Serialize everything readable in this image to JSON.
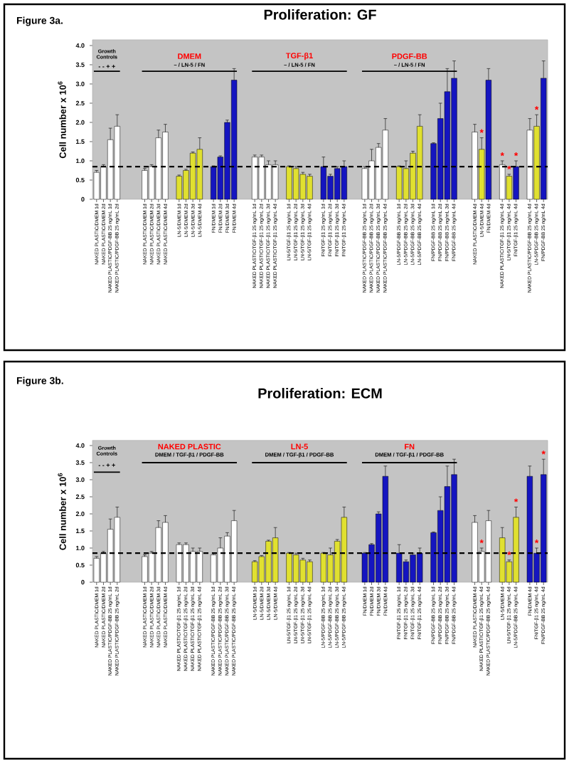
{
  "chart_data": [
    {
      "type": "bar",
      "title": "Proliferation: GF",
      "ylabel": "Cell number x 10$^{6}$",
      "annotations": [
        "Figure 3a.",
        "Growth Controls",
        "- - + +",
        "DMEM",
        "– / LN-5 / FN",
        "TGF-β1",
        "– / LN-5 / FN",
        "PDGF-BB",
        "– / LN-5 / FN"
      ],
      "categories": [
        "NAKED PLASTIC/DMEM 1d",
        "NAKED PLASTIC/DMEM 2d",
        "NAKED PLASTIC/PDGF-BB 25 ng/mL 1d",
        "NAKED PLASTIC/PDGF-BB 25 ng/mL 2d",
        null,
        null,
        null,
        "NAKED PLASTIC/DMEM 1d",
        "NAKED PLASTIC/DMEM 2d",
        "NAKED PLASTIC/DMEM 3d",
        "NAKED PLASTIC/DMEM 4d",
        null,
        "LN-5/DMEM 1d",
        "LN-5/DMEM 2d",
        "LN-5/DMEM 3d",
        "LN-5/DMEM 4d",
        null,
        "FN/DMEM 1d",
        "FN/DMEM 2d",
        "FN/DMEM 3d",
        "FN/DMEM 4d",
        null,
        null,
        "NAKED PLASTIC/TGF-β1 25 ng/mL 1d",
        "NAKED PLASTIC/TGF-β1 25 ng/mL 2d",
        "NAKED PLASTIC/TGF-β1 25 ng/mL 3d",
        "NAKED PLASTIC/TGF-β1 25 ng/mL 4d",
        null,
        "LN-5/TGF-β1 25 ng/mL 1d",
        "LN-5/TGF-β1 25 ng/mL 2d",
        "LN-5/TGF-β1 25 ng/mL 3d",
        "LN-5/TGF-β1 25 ng/mL 4d",
        null,
        "FN/TGF-β1 25 ng/mL 1d",
        "FN/TGF-β1 25 ng/mL 2d",
        "FN/TGF-β1 25 ng/mL 3d",
        "FN/TGF-β1 25 ng/mL 4d",
        null,
        null,
        "NAKED PLASTIC/PDGF-BB 25 ng/mL 1d",
        "NAKED PLASTIC/PDGF-BB 25 ng/mL 2d",
        "NAKED PLASTIC/PDGF-BB 25 ng/mL 3d",
        "NAKED PLASTIC/PDGF-BB 25 ng/mL 4d",
        null,
        "LN-5/PDGF-BB 25 ng/mL 1d",
        "LN-5/PDGF-BB 25 ng/mL 2d",
        "LN-5/PDGF-BB 25 ng/mL 3d",
        "LN-5/PDGF-BB 25 ng/mL 4d",
        null,
        "FN/PDGF-BB 25 ng/mL 1d",
        "FN/PDGF-BB 25 ng/mL 2d",
        "FN/PDGF-BB 25 ng/mL 3d",
        "FN/PDGF-BB 25 ng/mL 4d",
        null,
        null,
        "NAKED PLASTIC/DMEM 4d",
        "LN-5/DMEM 4d",
        "FN/DMEM 4d",
        null,
        "NAKED PLASTIC/TGF-β1 25 ng/mL 4d",
        "LN-5/TGF-β1 25 ng/mL 4d",
        "FN/TGF-β1 25 ng/mL 4d",
        null,
        "NAKED PLASTIC/PDGF-BB 25 ng/mL 4d",
        "LN-5/PDGF-BB 25 ng/mL 4d",
        "FN/PDGF-BB 25 ng/mL 4d"
      ],
      "values": [
        0.7,
        0.85,
        1.55,
        1.9,
        null,
        null,
        null,
        0.75,
        0.85,
        1.6,
        1.75,
        null,
        0.6,
        0.75,
        1.2,
        1.3,
        null,
        0.85,
        1.1,
        2.0,
        3.1,
        null,
        null,
        1.1,
        1.1,
        0.9,
        0.9,
        null,
        0.85,
        0.8,
        0.65,
        0.6,
        null,
        0.85,
        0.6,
        0.8,
        0.85,
        null,
        null,
        0.8,
        1.0,
        1.35,
        1.8,
        null,
        0.85,
        0.8,
        1.2,
        1.9,
        null,
        1.45,
        2.1,
        2.8,
        3.15,
        null,
        null,
        1.75,
        1.3,
        3.1,
        null,
        0.9,
        0.6,
        0.85,
        null,
        1.8,
        1.9,
        3.15
      ],
      "errors": [
        0.05,
        0.05,
        0.3,
        0.3,
        null,
        null,
        null,
        0.05,
        0.05,
        0.2,
        0.2,
        null,
        0.03,
        0.03,
        0.03,
        0.3,
        null,
        0.02,
        0.03,
        0.06,
        0.3,
        null,
        null,
        0.05,
        0.05,
        0.1,
        0.1,
        null,
        0.02,
        0.05,
        0.05,
        0.05,
        null,
        0.25,
        0.05,
        0.05,
        0.15,
        null,
        null,
        0.05,
        0.3,
        0.1,
        0.3,
        null,
        0.02,
        0.2,
        0.05,
        0.3,
        null,
        0.02,
        0.4,
        0.6,
        0.45,
        null,
        null,
        0.2,
        0.3,
        0.3,
        null,
        0.1,
        0.05,
        0.15,
        null,
        0.3,
        0.3,
        0.45
      ],
      "colors": [
        "#ffffff",
        "#ffffff",
        "#ffffff",
        "#ffffff",
        null,
        null,
        null,
        "#ffffff",
        "#ffffff",
        "#ffffff",
        "#ffffff",
        null,
        "#e0e030",
        "#e0e030",
        "#e0e030",
        "#e0e030",
        null,
        "#1515c0",
        "#1515c0",
        "#1515c0",
        "#1515c0",
        null,
        null,
        "#ffffff",
        "#ffffff",
        "#ffffff",
        "#ffffff",
        null,
        "#e0e030",
        "#e0e030",
        "#e0e030",
        "#e0e030",
        null,
        "#1515c0",
        "#1515c0",
        "#1515c0",
        "#1515c0",
        null,
        null,
        "#ffffff",
        "#ffffff",
        "#ffffff",
        "#ffffff",
        null,
        "#e0e030",
        "#e0e030",
        "#e0e030",
        "#e0e030",
        null,
        "#1515c0",
        "#1515c0",
        "#1515c0",
        "#1515c0",
        null,
        null,
        "#ffffff",
        "#e0e030",
        "#1515c0",
        null,
        "#ffffff",
        "#e0e030",
        "#1515c0",
        null,
        "#ffffff",
        "#e0e030",
        "#1515c0"
      ],
      "value_labels": [
        null,
        null,
        null,
        null,
        null,
        null,
        null,
        null,
        null,
        null,
        null,
        null,
        null,
        null,
        null,
        null,
        null,
        null,
        null,
        null,
        null,
        null,
        null,
        null,
        null,
        null,
        null,
        null,
        null,
        null,
        null,
        null,
        null,
        null,
        null,
        null,
        null,
        null,
        null,
        null,
        null,
        null,
        null,
        null,
        null,
        null,
        null,
        null,
        null,
        null,
        null,
        null,
        null,
        null,
        null,
        null,
        "*",
        null,
        null,
        "*",
        "*",
        "*",
        null,
        null,
        "*",
        null
      ],
      "ylim": [
        0,
        4.15
      ],
      "yticks": [
        0,
        0.5,
        {
          "value": 1,
          "label": "1.0"
        },
        1.5,
        {
          "value": 2,
          "label": "2.0"
        },
        2.5,
        {
          "value": 3,
          "label": "3.0"
        },
        3.5,
        {
          "value": 4,
          "label": "4.0"
        }
      ],
      "ref_lines": [
        {
          "axis": "y",
          "value": 0.85,
          "color": "#000000",
          "line_style": "dashed"
        }
      ]
    },
    {
      "type": "bar",
      "title": "Proliferation: ECM",
      "ylabel": "Cell number x 10$^{6}$",
      "annotations": [
        "Figure 3b.",
        "Growth Controls",
        "- - + +",
        "NAKED PLASTIC",
        "DMEM / TGF-β1 / PDGF-BB",
        "LN-5",
        "DMEM / TGF-β1 / PDGF-BB",
        "FN",
        "DMEM / TGF-β1 / PDGF-BB"
      ],
      "categories": [
        "NAKED PLASTIC/DMEM 1d",
        "NAKED PLASTIC/DMEM 2d",
        "NAKED PLASTIC/PDGF-BB 25 ng/mL 1d",
        "NAKED PLASTIC/PDGF-BB 25 ng/mL 2d",
        null,
        null,
        null,
        "NAKED PLASTIC/DMEM 1d",
        "NAKED PLASTIC/DMEM 2d",
        "NAKED PLASTIC/DMEM 3d",
        "NAKED PLASTIC/DMEM 4d",
        null,
        "NAKED PLASTIC/TGF-β1 25 ng/mL 1d",
        "NAKED PLASTIC/TGF-β1 25 ng/mL 2d",
        "NAKED PLASTIC/TGF-β1 25 ng/mL 3d",
        "NAKED PLASTIC/TGF-β1 25 ng/mL 4d",
        null,
        "NAKED PLASTIC/PDGF-BB 25 ng/mL 1d",
        "NAKED PLASTIC/PDGF-BB 25 ng/mL 2d",
        "NAKED PLASTIC/PDGF-BB 25 ng/mL 3d",
        "NAKED PLASTIC/PDGF-BB 25 ng/mL 4d",
        null,
        null,
        "LN-5/DMEM 1d",
        "LN-5/DMEM 2d",
        "LN-5/DMEM 3d",
        "LN-5/DMEM 4d",
        null,
        "LN-5/TGF-β1 25 ng/mL 1d",
        "LN-5/TGF-β1 25 ng/mL 2d",
        "LN-5/TGF-β1 25 ng/mL 3d",
        "LN-5/TGF-β1 25 ng/mL 4d",
        null,
        "LN-5/PDGF-BB 25 ng/mL 1d",
        "LN-5/PDGF-BB 25 ng/mL 2d",
        "LN-5/PDGF-BB 25 ng/mL 3d",
        "LN-5/PDGF-BB 25 ng/mL 4d",
        null,
        null,
        "FN/DMEM 1d",
        "FN/DMEM 2d",
        "FN/DMEM 3d",
        "FN/DMEM 4d",
        null,
        "FN/TGF-β1 25 ng/mL 1d",
        "FN/TGF-β1 25 ng/mL 2d",
        "FN/TGF-β1 25 ng/mL 3d",
        "FN/TGF-β1 25 ng/mL 4d",
        null,
        "FN/PDGF-BB 25 ng/mL 1d",
        "FN/PDGF-BB 25 ng/mL 2d",
        "FN/PDGF-BB 25 ng/mL 3d",
        "FN/PDGF-BB 25 ng/mL 4d",
        null,
        null,
        "NAKED PLASTIC/DMEM 4d",
        "NAKED PLASTIC/TGF-β1 25 ng/mL 4d",
        "NAKED PLASTIC/PDGF-BB 25 ng/mL 4d",
        null,
        "LN-5/DMEM 4d",
        "LN-5/TGF-β1 25 ng/mL 4d",
        "LN-5/PDGF-BB 25 ng/mL 4d",
        null,
        "FN/DMEM 4d",
        "FN/TGF-β1 25 ng/mL 4d",
        "FN/PDGF-BB 25 ng/mL 4d"
      ],
      "values": [
        0.7,
        0.85,
        1.55,
        1.9,
        null,
        null,
        null,
        0.75,
        0.85,
        1.6,
        1.75,
        null,
        1.1,
        1.1,
        0.9,
        0.9,
        null,
        0.8,
        1.0,
        1.35,
        1.8,
        null,
        null,
        0.6,
        0.75,
        1.2,
        1.3,
        null,
        0.85,
        0.8,
        0.65,
        0.6,
        null,
        0.85,
        0.8,
        1.2,
        1.9,
        null,
        null,
        0.85,
        1.1,
        2.0,
        3.1,
        null,
        0.85,
        0.6,
        0.8,
        0.85,
        null,
        1.45,
        2.1,
        2.8,
        3.15,
        null,
        null,
        1.75,
        0.9,
        1.8,
        null,
        1.3,
        0.6,
        1.9,
        null,
        3.1,
        0.85,
        3.15
      ],
      "errors": [
        0.05,
        0.05,
        0.3,
        0.3,
        null,
        null,
        null,
        0.05,
        0.05,
        0.2,
        0.2,
        null,
        0.05,
        0.05,
        0.1,
        0.1,
        null,
        0.05,
        0.3,
        0.1,
        0.3,
        null,
        null,
        0.03,
        0.03,
        0.03,
        0.3,
        null,
        0.02,
        0.05,
        0.05,
        0.05,
        null,
        0.02,
        0.2,
        0.05,
        0.3,
        null,
        null,
        0.02,
        0.03,
        0.06,
        0.3,
        null,
        0.25,
        0.05,
        0.05,
        0.15,
        null,
        0.02,
        0.4,
        0.6,
        0.45,
        null,
        null,
        0.2,
        0.1,
        0.3,
        null,
        0.3,
        0.05,
        0.3,
        null,
        0.3,
        0.15,
        0.45
      ],
      "colors": [
        "#ffffff",
        "#ffffff",
        "#ffffff",
        "#ffffff",
        null,
        null,
        null,
        "#ffffff",
        "#ffffff",
        "#ffffff",
        "#ffffff",
        null,
        "#ffffff",
        "#ffffff",
        "#ffffff",
        "#ffffff",
        null,
        "#ffffff",
        "#ffffff",
        "#ffffff",
        "#ffffff",
        null,
        null,
        "#e0e030",
        "#e0e030",
        "#e0e030",
        "#e0e030",
        null,
        "#e0e030",
        "#e0e030",
        "#e0e030",
        "#e0e030",
        null,
        "#e0e030",
        "#e0e030",
        "#e0e030",
        "#e0e030",
        null,
        null,
        "#1515c0",
        "#1515c0",
        "#1515c0",
        "#1515c0",
        null,
        "#1515c0",
        "#1515c0",
        "#1515c0",
        "#1515c0",
        null,
        "#1515c0",
        "#1515c0",
        "#1515c0",
        "#1515c0",
        null,
        null,
        "#ffffff",
        "#ffffff",
        "#ffffff",
        null,
        "#e0e030",
        "#e0e030",
        "#e0e030",
        null,
        "#1515c0",
        "#1515c0",
        "#1515c0"
      ],
      "value_labels": [
        null,
        null,
        null,
        null,
        null,
        null,
        null,
        null,
        null,
        null,
        null,
        null,
        null,
        null,
        null,
        null,
        null,
        null,
        null,
        null,
        null,
        null,
        null,
        null,
        null,
        null,
        null,
        null,
        null,
        null,
        null,
        null,
        null,
        null,
        null,
        null,
        null,
        null,
        null,
        null,
        null,
        null,
        null,
        null,
        null,
        null,
        null,
        null,
        null,
        null,
        null,
        null,
        null,
        null,
        null,
        null,
        "*",
        null,
        null,
        null,
        "*",
        "*",
        null,
        null,
        "*",
        "*"
      ],
      "ylim": [
        0,
        4.15
      ],
      "yticks": [
        0,
        0.5,
        {
          "value": 1,
          "label": "1.0"
        },
        1.5,
        {
          "value": 2,
          "label": "2.0"
        },
        2.5,
        {
          "value": 3,
          "label": "3.0"
        },
        3.5,
        {
          "value": 4,
          "label": "4.0"
        }
      ],
      "ref_lines": [
        {
          "axis": "y",
          "value": 0.85,
          "color": "#000000",
          "line_style": "dashed"
        }
      ]
    }
  ]
}
